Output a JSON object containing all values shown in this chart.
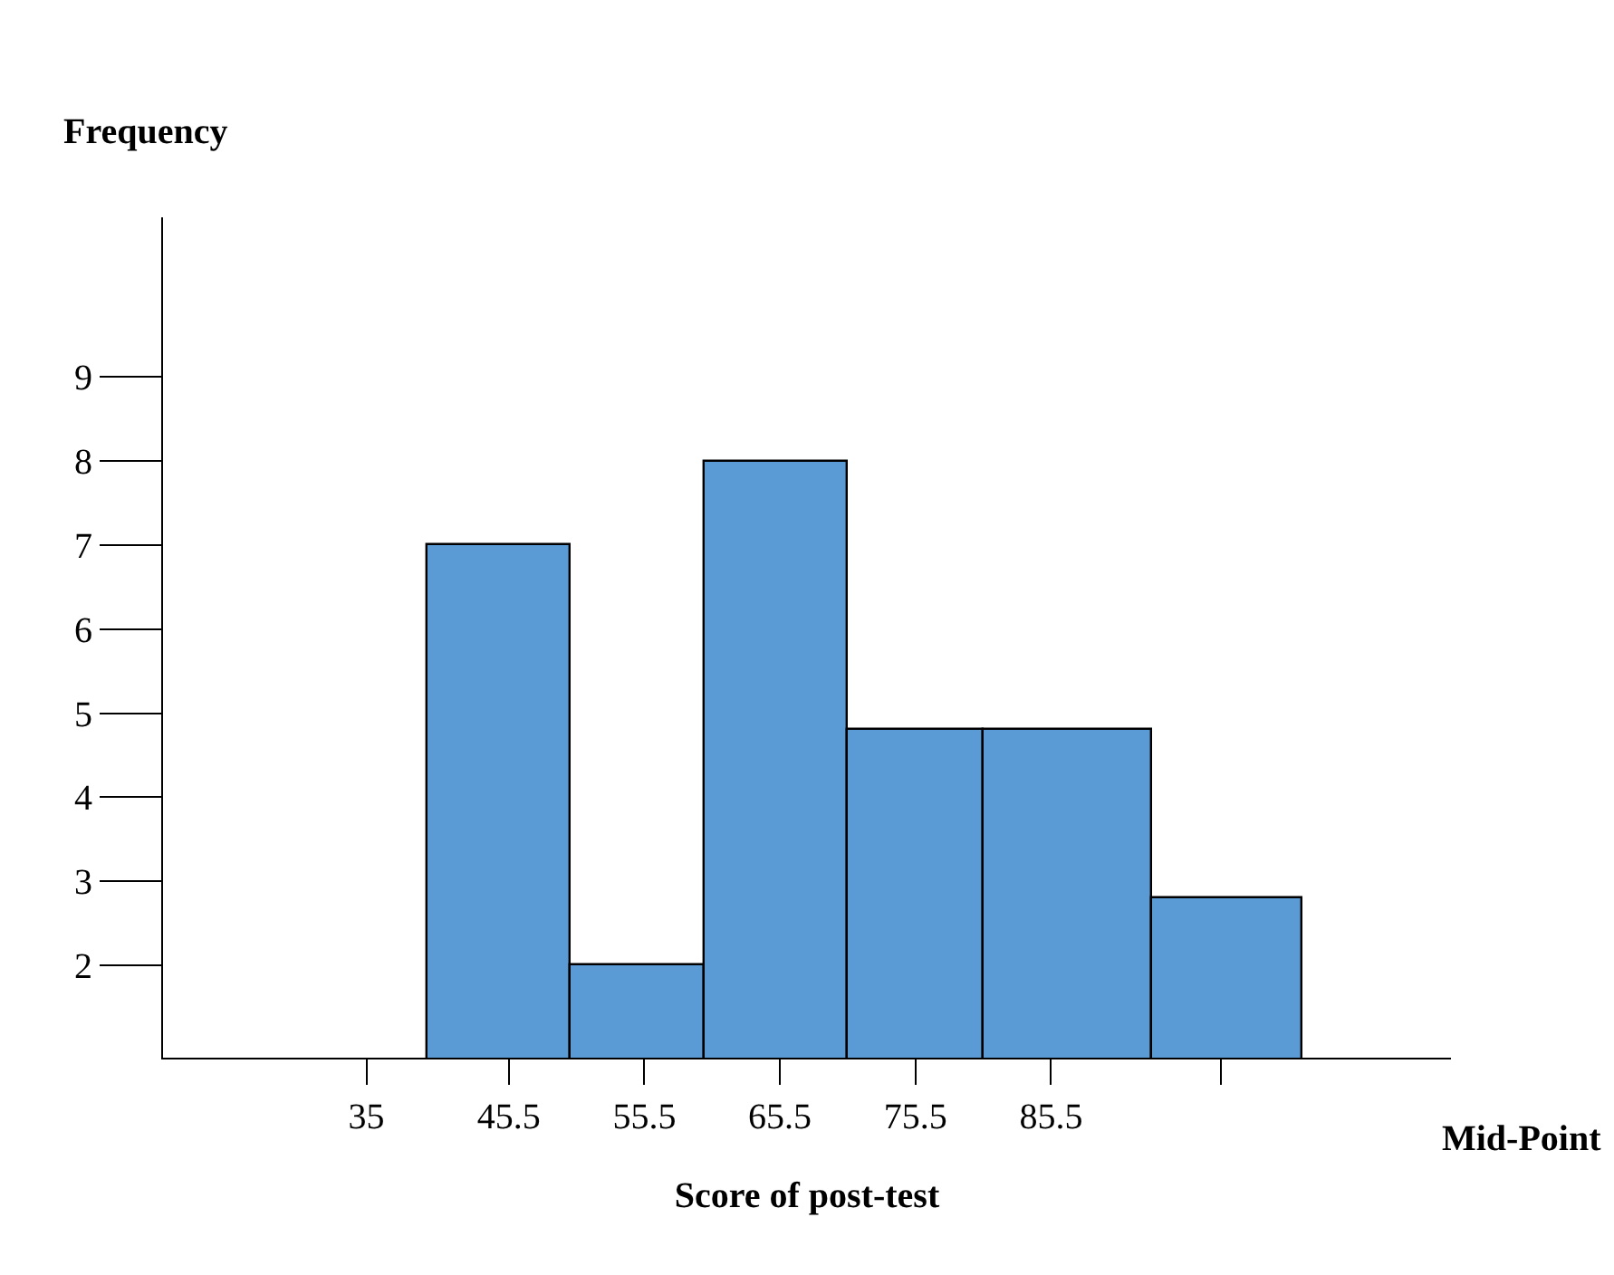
{
  "chart_data": {
    "type": "histogram",
    "ylabel": "Frequency",
    "xlabel": "Score of post-test",
    "annotations": [
      "Mid-Point"
    ],
    "bins": [
      39.5,
      50,
      60,
      70.5,
      80.5,
      93,
      104
    ],
    "values": [
      7,
      2,
      8,
      4.8,
      4.8,
      2.8
    ],
    "color": "#5b9bd5",
    "xlim": [
      20,
      115
    ],
    "ylim": [
      0.9,
      10.9
    ],
    "xticks": [
      35,
      45.5,
      55.5,
      65.5,
      75.5,
      85.5,
      {
        "value": 98,
        "label": null
      }
    ],
    "yticks": [
      2,
      3,
      4,
      5,
      6,
      7,
      8,
      9
    ]
  }
}
